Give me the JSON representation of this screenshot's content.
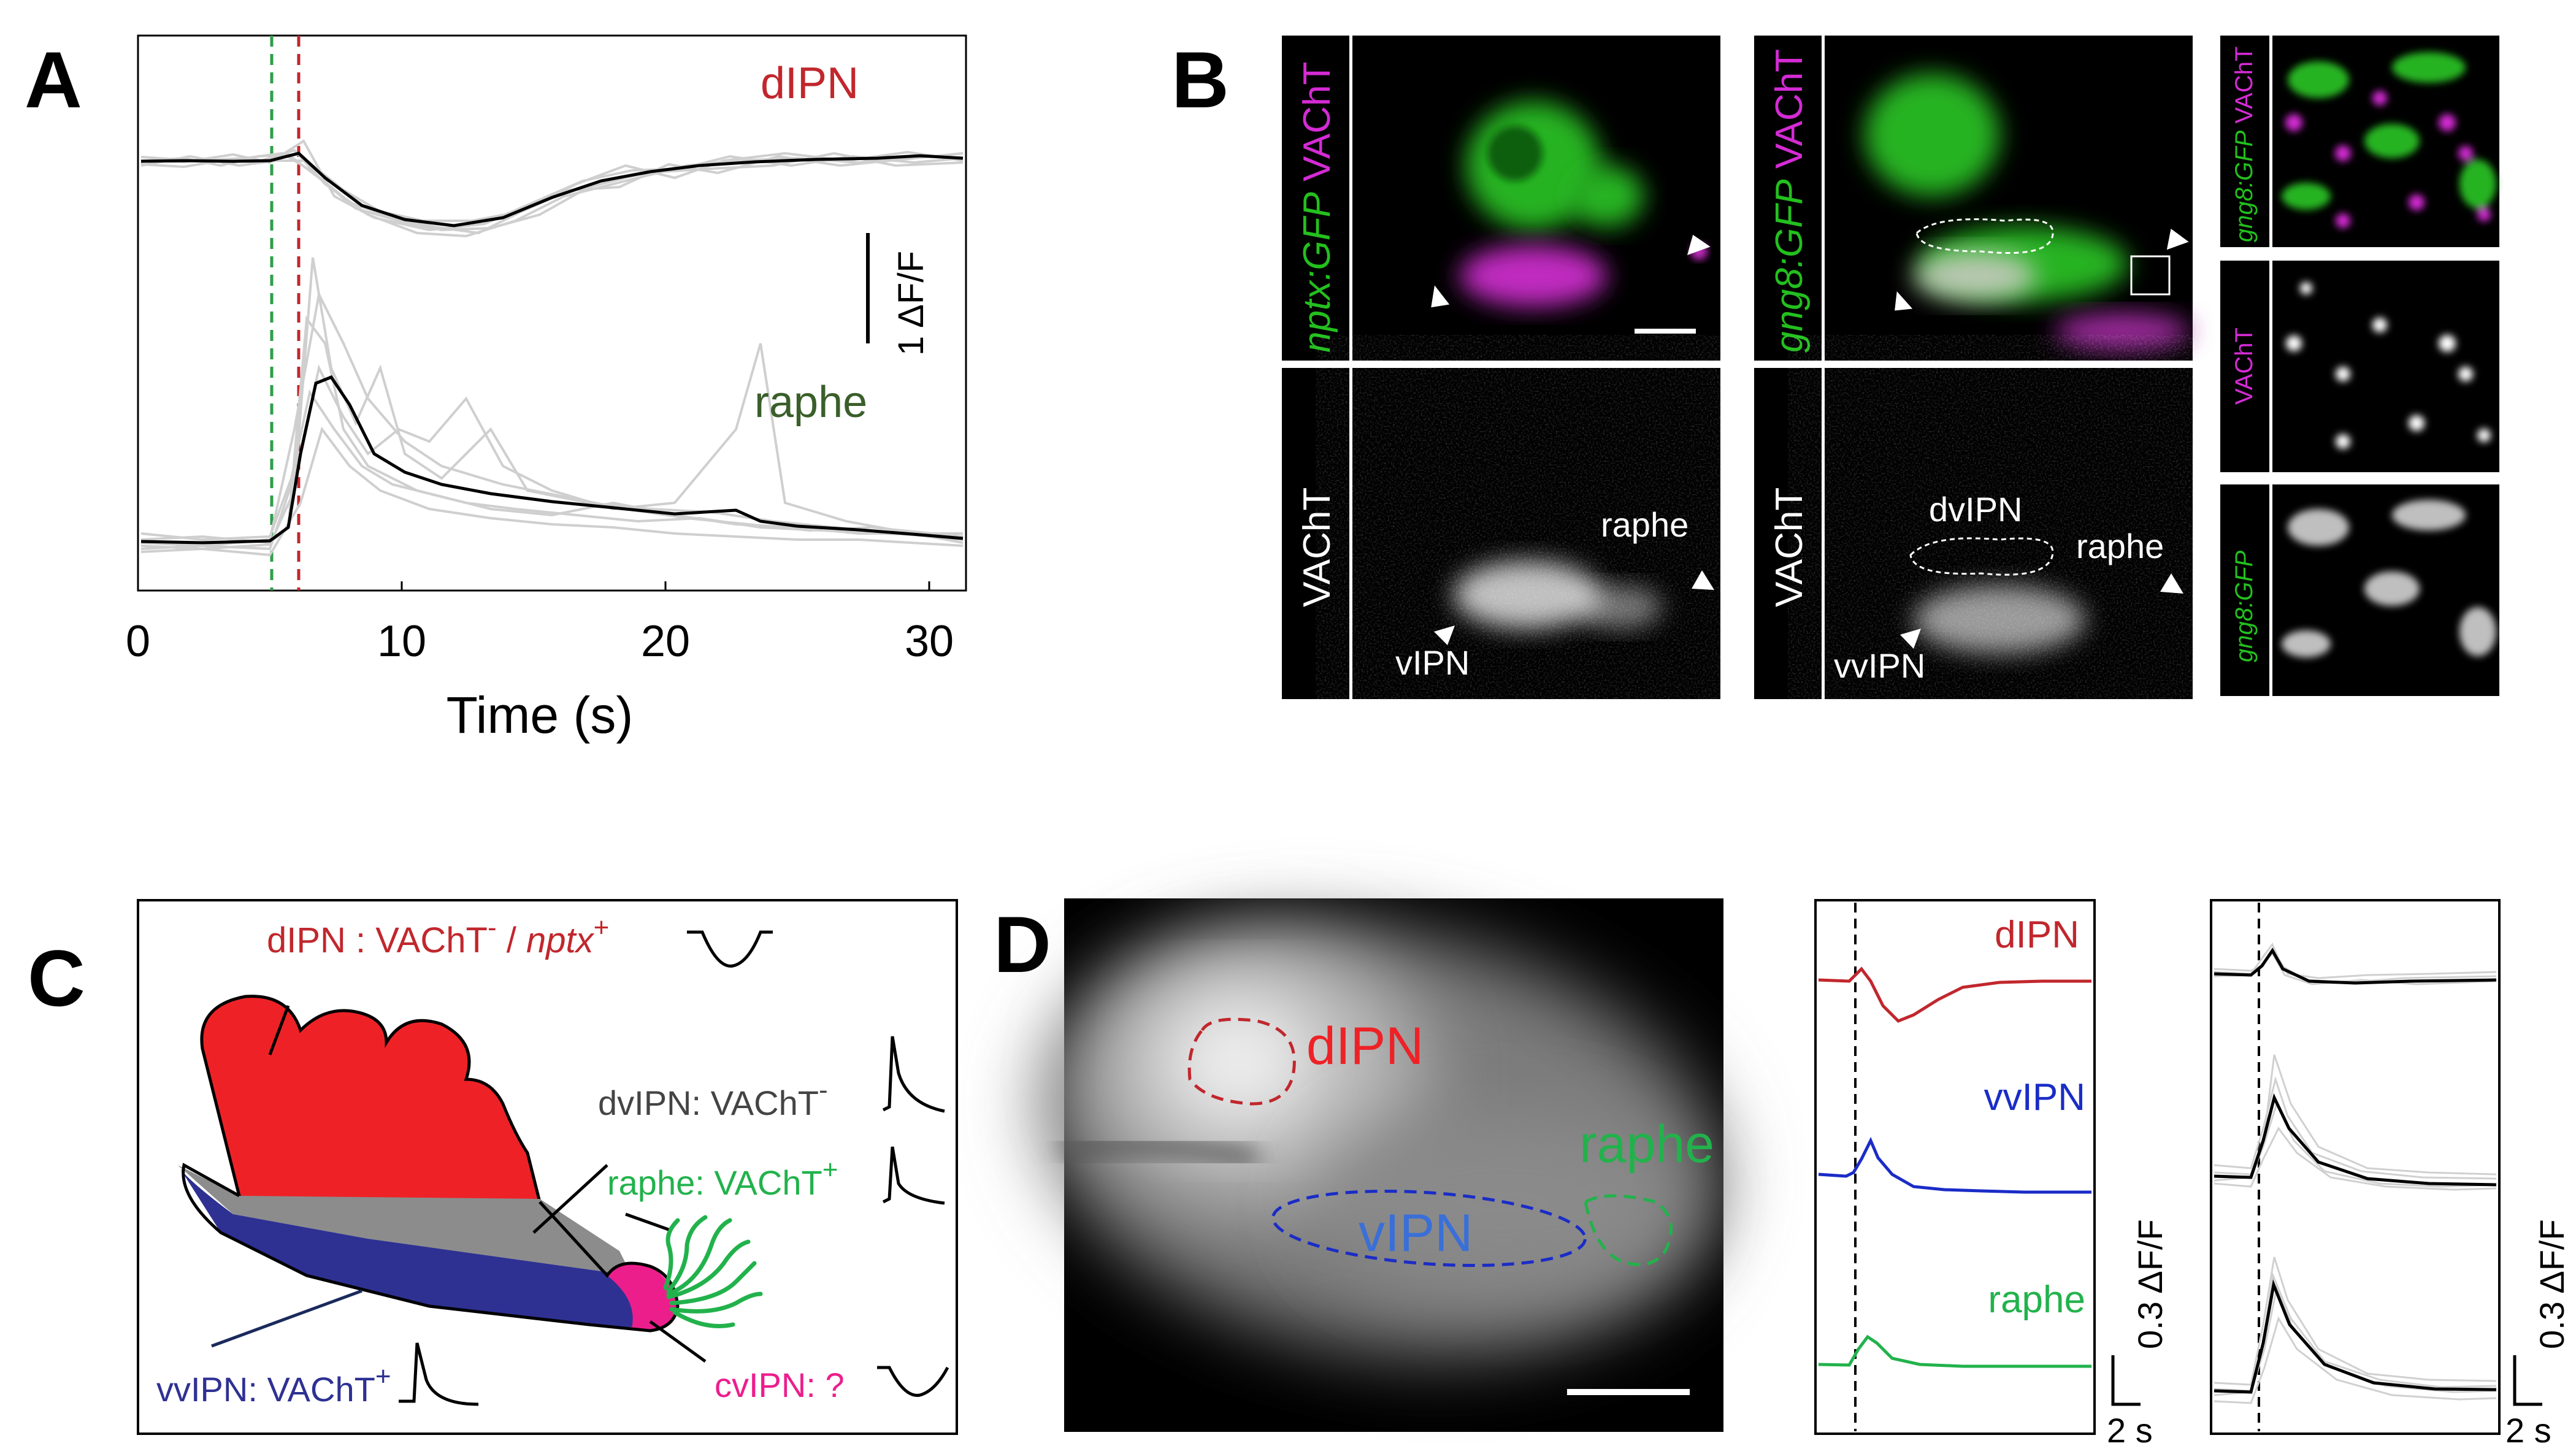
{
  "panels": {
    "A": {
      "letter": "A",
      "labels": {
        "dipn": "dIPN",
        "raphe": "raphe",
        "scale": "1 ΔF/F",
        "xlabel": "Time (s)"
      },
      "ticks": [
        "0",
        "10",
        "20",
        "30"
      ],
      "colors": {
        "dipn": "#c1272d",
        "raphe": "#3a5f2a",
        "trace": "#000000",
        "grey": "#cfcfcf",
        "green_line": "#2e9e4a",
        "red_line": "#c1272d"
      }
    },
    "B": {
      "letter": "B",
      "col1": {
        "title_green": "nptx:GFP",
        "title_magenta": " VAChT",
        "lower": "VAChT",
        "label_raphe": "raphe",
        "label_vipn": "vIPN"
      },
      "col2": {
        "title_green": "gng8:GFP",
        "title_magenta": " VAChT",
        "lower": "VAChT",
        "label_dvipn": "dvIPN",
        "label_raphe": "raphe",
        "label_vvipn": "vvIPN"
      },
      "col3": {
        "top_green": "gng8:GFP",
        "top_magenta": " VAChT",
        "mid": "VAChT",
        "bottom": "gng8:GFP"
      },
      "colors": {
        "green": "#23c01e",
        "magenta": "#d42bd4"
      }
    },
    "C": {
      "letter": "C",
      "labels": {
        "dipn": "dIPN : VAChT",
        "dipn_sup_minus": "-",
        "dipn_sep": " / ",
        "dipn_nptx": "nptx",
        "dipn_sup_plus": "+",
        "dvipn": "dvIPN: VAChT",
        "dvipn_sup": "-",
        "raphe": "raphe: VAChT",
        "raphe_sup": "+",
        "vvipn": "vvIPN: VAChT",
        "vvipn_sup": "+",
        "cvipn": "cvIPN: ?"
      },
      "colors": {
        "dipn": "#ee2226",
        "dvipn": "#8c8c8c",
        "vvipn": "#2e3192",
        "cvipn": "#ec1e8c",
        "raphe": "#22b24c",
        "dvipn_text": "#444444"
      }
    },
    "D": {
      "letter": "D",
      "image_labels": {
        "dipn": "dIPN",
        "raphe": "raphe",
        "vipn": "vIPN"
      },
      "trace_labels": {
        "dipn": "dIPN",
        "vvipn": "vvIPN",
        "raphe": "raphe"
      },
      "scale_y": "0.3 ΔF/F",
      "scale_x": "2 s",
      "scale_y2": "0.3 ΔF/F",
      "scale_x2": "2 s",
      "colors": {
        "dipn": "#c1272d",
        "vvipn": "#1a2cc7",
        "raphe": "#22b24c",
        "vipn": "#3a6fd8"
      }
    }
  }
}
